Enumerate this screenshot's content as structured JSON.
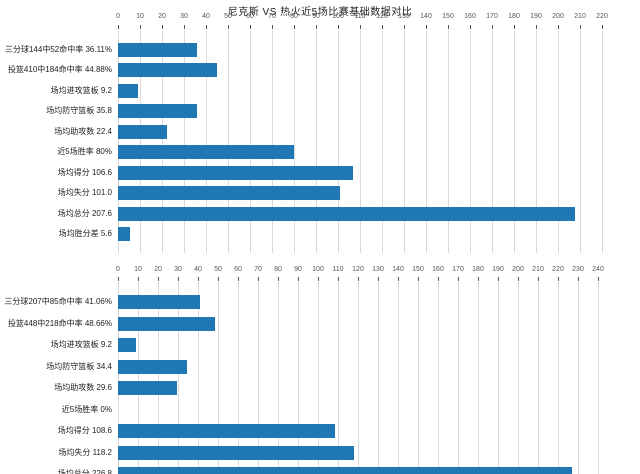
{
  "title": "尼克斯 VS 热火近5场比赛基础数据对比",
  "colors": {
    "bar": "#1f77b4",
    "grid": "#d9d9d9",
    "tick_mark": "#555555",
    "tick_label": "#555555",
    "category_label": "#222222",
    "background": "#ffffff"
  },
  "chart_data": [
    {
      "type": "bar",
      "orientation": "horizontal",
      "title": "尼克斯 VS 热火近5场比赛基础数据对比",
      "categories": [
        "三分球144中52命中率 36.11%",
        "投篮410中184命中率 44.88%",
        "场均进攻篮板 9.2",
        "场均防守篮板 35.8",
        "场均助攻数 22.4",
        "近5场胜率 80%",
        "场均得分 106.6",
        "场均失分 101.0",
        "场均总分 207.6",
        "场均胜分差 5.6"
      ],
      "values": [
        36.11,
        44.88,
        9.2,
        35.8,
        22.4,
        80,
        106.6,
        101.0,
        207.6,
        5.6
      ],
      "xlim": [
        0,
        220
      ],
      "tick_step": 10,
      "axis_position": "top",
      "grid": true,
      "bar_color": "#1f77b4"
    },
    {
      "type": "bar",
      "orientation": "horizontal",
      "categories": [
        "三分球207中85命中率 41.06%",
        "投篮448中218命中率 48.66%",
        "场均进攻篮板 9.2",
        "场均防守篮板 34.4",
        "场均助攻数 29.6",
        "近5场胜率 0%",
        "场均得分 108.6",
        "场均失分 118.2",
        "场均总分 226.8"
      ],
      "values": [
        41.06,
        48.66,
        9.2,
        34.4,
        29.6,
        0,
        108.6,
        118.2,
        226.8
      ],
      "xlim": [
        0,
        240
      ],
      "tick_step": 10,
      "axis_position": "top",
      "grid": true,
      "bar_color": "#1f77b4",
      "clipped_at_bottom": true
    }
  ]
}
